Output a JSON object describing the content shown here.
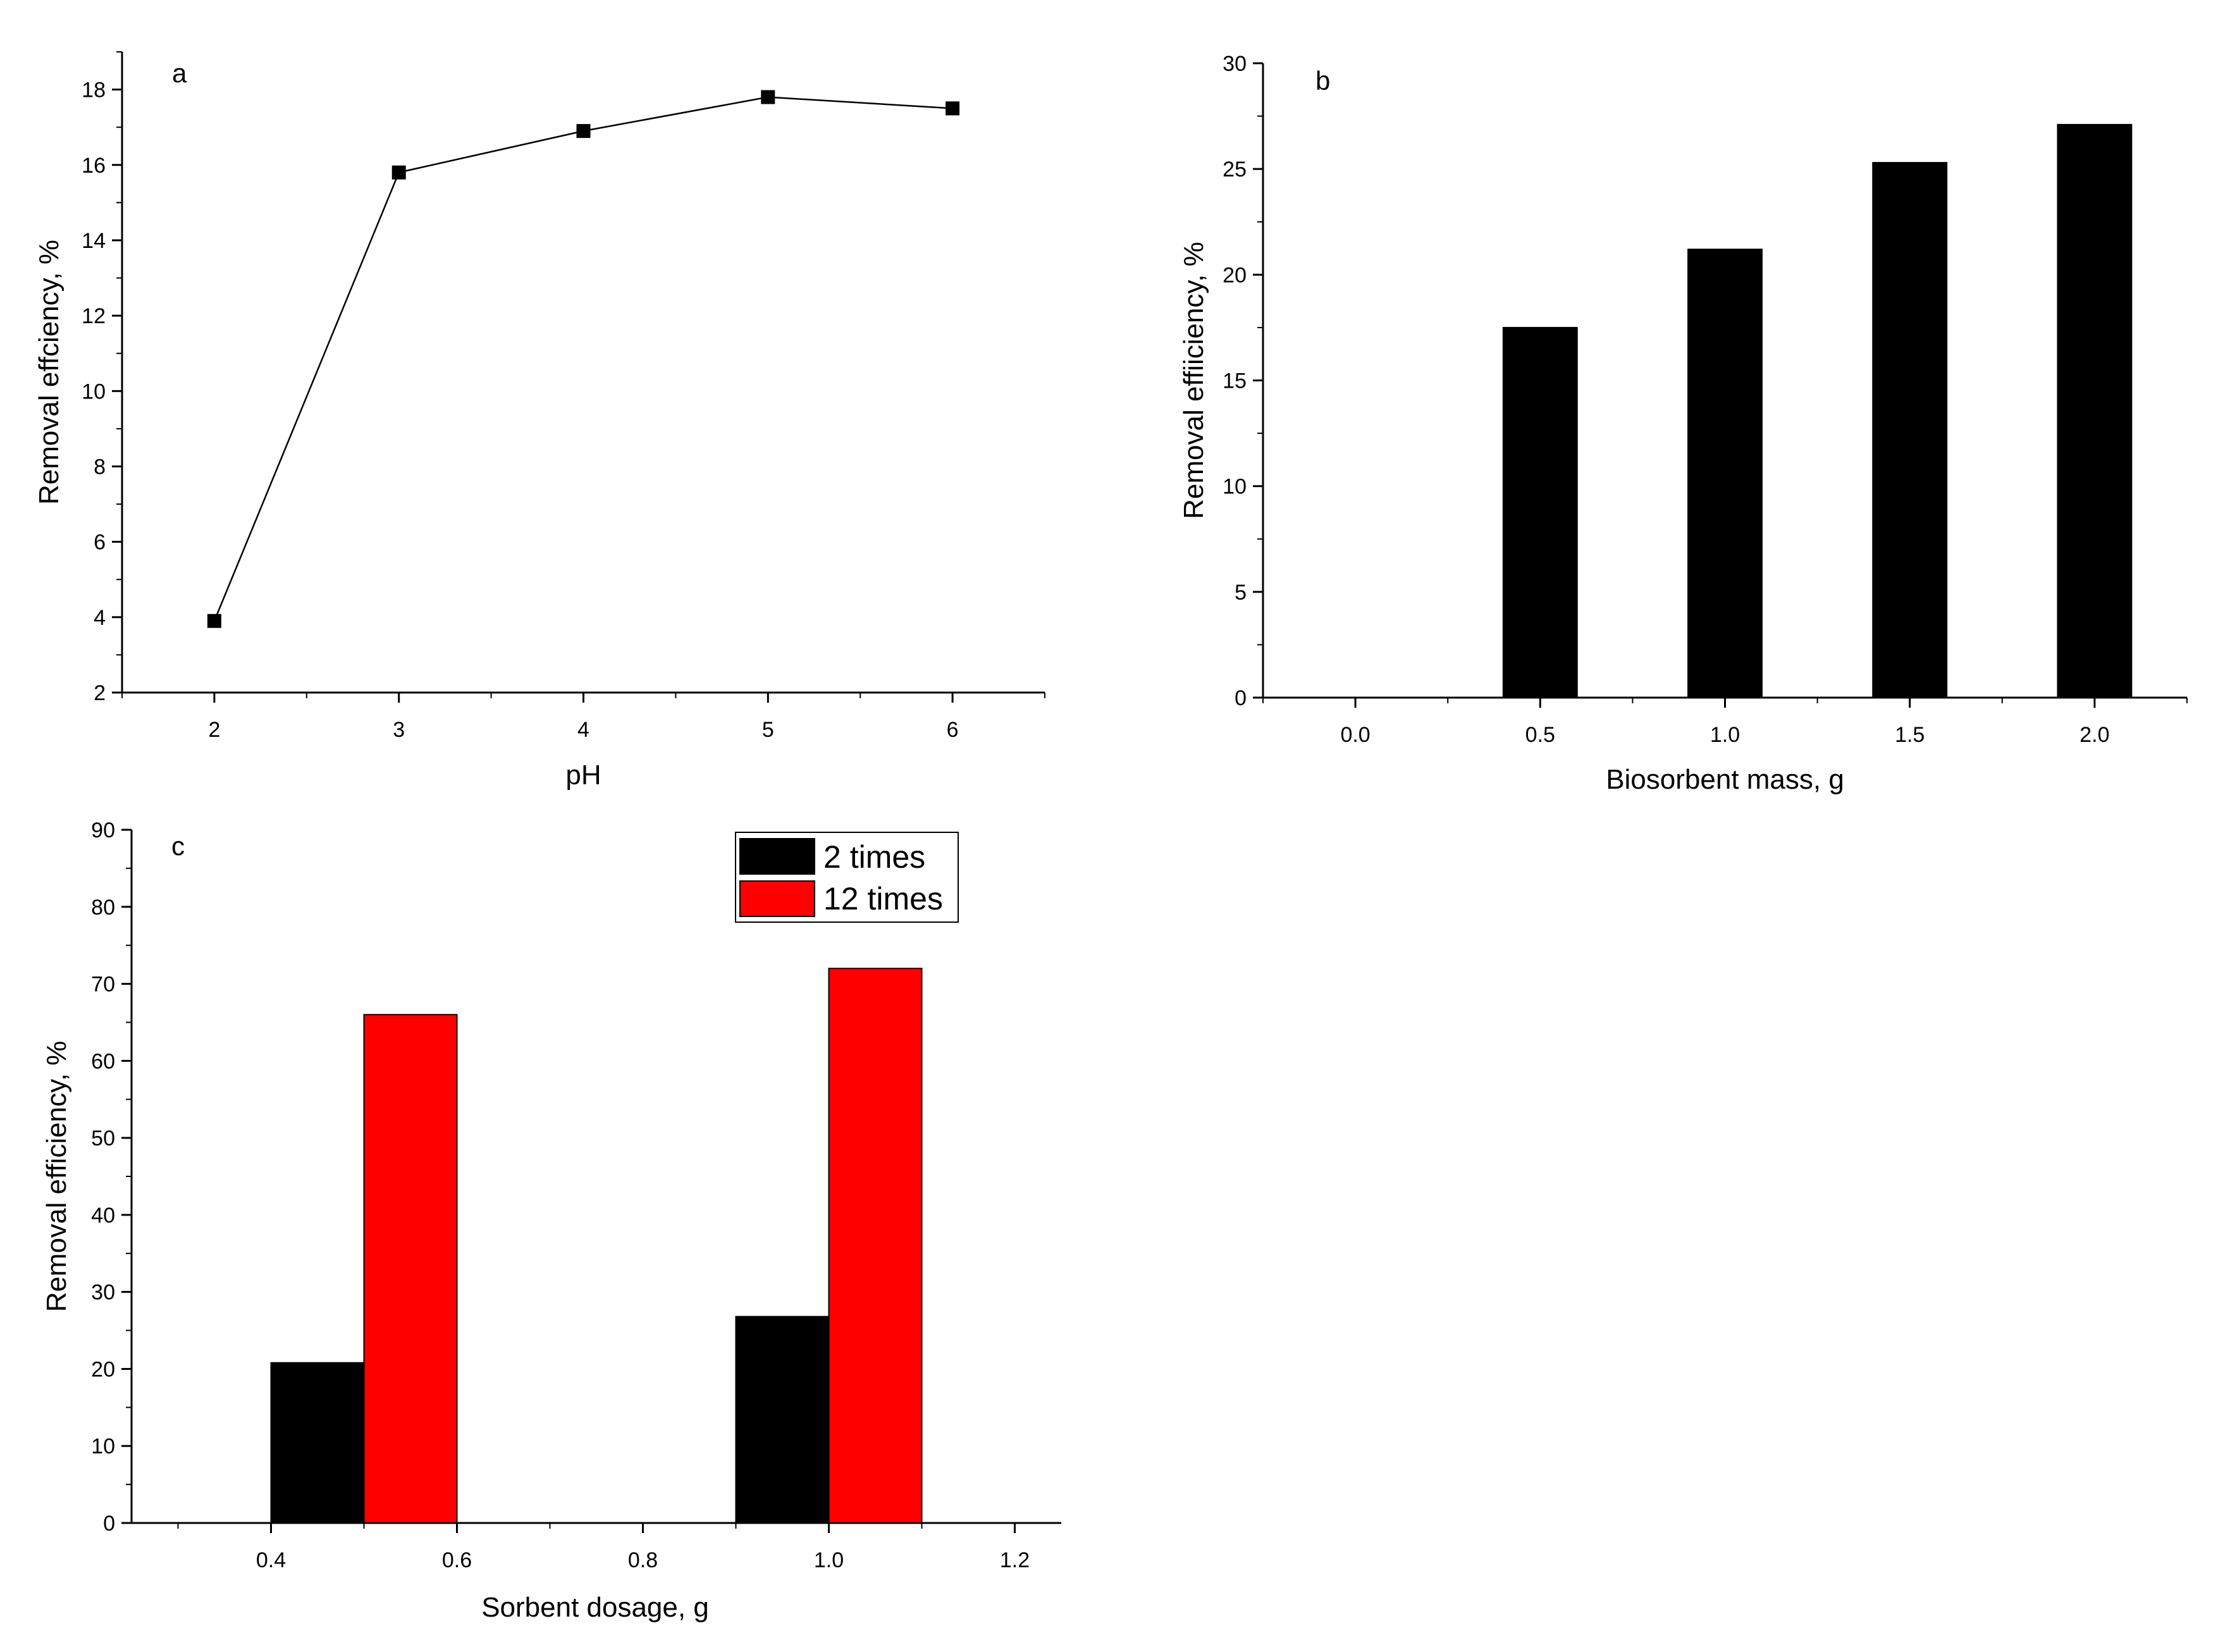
{
  "colors": {
    "line": "#000000",
    "series_black": "#000000",
    "series_red": "#ff0000",
    "background": "#ffffff"
  },
  "chart_data": [
    {
      "id": "a",
      "panel_label": "a",
      "type": "line",
      "x": [
        2,
        3,
        4,
        5,
        6
      ],
      "y": [
        3.9,
        15.8,
        16.9,
        17.8,
        17.5
      ],
      "xlabel": "pH",
      "ylabel": "Removal effciency, %",
      "xlim": [
        1.5,
        6.5
      ],
      "ylim": [
        2,
        19
      ],
      "xticks": [
        "2",
        "3",
        "4",
        "5",
        "6"
      ],
      "yticks": [
        "2",
        "4",
        "6",
        "8",
        "10",
        "12",
        "14",
        "16",
        "18"
      ],
      "grid": false,
      "marker": "square"
    },
    {
      "id": "b",
      "panel_label": "b",
      "type": "bar",
      "x": [
        0.5,
        1.0,
        1.5,
        2.0
      ],
      "values": [
        17.5,
        21.2,
        25.3,
        27.1
      ],
      "bar_width": 0.2,
      "xlabel": "Biosorbent mass, g",
      "ylabel": "Removal effiiciency, %",
      "xlim": [
        -0.25,
        2.25
      ],
      "ylim": [
        0,
        30
      ],
      "xticks": [
        "0.0",
        "0.5",
        "1.0",
        "1.5",
        "2.0"
      ],
      "yticks": [
        "0",
        "5",
        "10",
        "15",
        "20",
        "25",
        "30"
      ],
      "grid": false
    },
    {
      "id": "c",
      "panel_label": "c",
      "type": "bar",
      "x": [
        0.5,
        1.0
      ],
      "bar_width": 0.1,
      "series": [
        {
          "name": "2 times",
          "values": [
            20.8,
            26.8
          ],
          "color": "#000000"
        },
        {
          "name": "12 times",
          "values": [
            66.0,
            72.0
          ],
          "color": "#ff0000"
        }
      ],
      "xlabel": "Sorbent dosage, g",
      "ylabel": "Removal efficiency, %",
      "xlim": [
        0.25,
        1.25
      ],
      "ylim": [
        0,
        90
      ],
      "xticks": [
        "0.4",
        "0.6",
        "0.8",
        "1.0",
        "1.2"
      ],
      "yticks": [
        "0",
        "10",
        "20",
        "30",
        "40",
        "50",
        "60",
        "70",
        "80",
        "90"
      ],
      "grid": false,
      "legend_position": "top-right"
    }
  ]
}
